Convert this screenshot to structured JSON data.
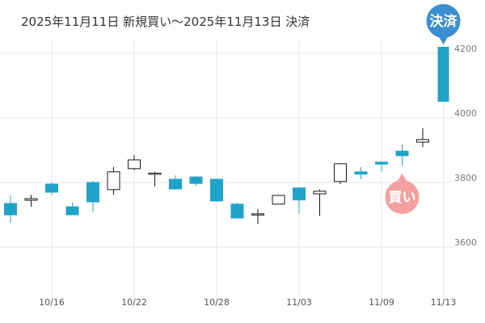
{
  "header": {
    "title": "2025年11月11日 新規買い〜2025年11月13日 決済"
  },
  "colors": {
    "up_fill": "#ffffff",
    "up_stroke": "#1a1a1a",
    "down_fill": "#1fa3c9",
    "grid": "#e6e6e6",
    "settle_bar": "#1fa3c9",
    "settle_badge": "#3b8fd1",
    "buy_badge": "#f4a0a0"
  },
  "markers": {
    "settle": {
      "label": "決済",
      "low": 4050,
      "high": 4220
    },
    "buy": {
      "label": "買い"
    }
  },
  "chart_data": {
    "type": "candlestick",
    "title": "2025年11月11日 新規買い〜2025年11月13日 決済",
    "xlabel": "",
    "ylabel": "",
    "ylim": [
      3420,
      4240
    ],
    "yticks": [
      3600,
      3800,
      4000,
      4200
    ],
    "xticks": [
      {
        "label": "10/16",
        "index": 2
      },
      {
        "label": "10/22",
        "index": 6
      },
      {
        "label": "10/28",
        "index": 10
      },
      {
        "label": "11/03",
        "index": 14
      },
      {
        "label": "11/09",
        "index": 18
      },
      {
        "label": "11/13",
        "index": 21
      }
    ],
    "grid": true,
    "candles": [
      {
        "open": 3735,
        "close": 3700,
        "high": 3760,
        "low": 3675
      },
      {
        "open": 3745,
        "close": 3750,
        "high": 3762,
        "low": 3725
      },
      {
        "open": 3795,
        "close": 3770,
        "high": 3800,
        "low": 3762
      },
      {
        "open": 3725,
        "close": 3700,
        "high": 3738,
        "low": 3700
      },
      {
        "open": 3800,
        "close": 3740,
        "high": 3805,
        "low": 3710
      },
      {
        "open": 3778,
        "close": 3833,
        "high": 3848,
        "low": 3762
      },
      {
        "open": 3843,
        "close": 3870,
        "high": 3885,
        "low": 3838
      },
      {
        "open": 3827,
        "close": 3829,
        "high": 3833,
        "low": 3788
      },
      {
        "open": 3810,
        "close": 3780,
        "high": 3822,
        "low": 3778
      },
      {
        "open": 3817,
        "close": 3797,
        "high": 3820,
        "low": 3790
      },
      {
        "open": 3810,
        "close": 3743,
        "high": 3812,
        "low": 3740
      },
      {
        "open": 3733,
        "close": 3690,
        "high": 3737,
        "low": 3690
      },
      {
        "open": 3700,
        "close": 3703,
        "high": 3718,
        "low": 3672
      },
      {
        "open": 3733,
        "close": 3760,
        "high": 3762,
        "low": 3733
      },
      {
        "open": 3783,
        "close": 3746,
        "high": 3785,
        "low": 3705
      },
      {
        "open": 3765,
        "close": 3773,
        "high": 3778,
        "low": 3697
      },
      {
        "open": 3803,
        "close": 3858,
        "high": 3860,
        "low": 3795
      },
      {
        "open": 3833,
        "close": 3826,
        "high": 3848,
        "low": 3810
      },
      {
        "open": 3863,
        "close": 3857,
        "high": 3866,
        "low": 3833
      },
      {
        "open": 3897,
        "close": 3883,
        "high": 3918,
        "low": 3852
      },
      {
        "open": 3925,
        "close": 3933,
        "high": 3968,
        "low": 3910
      }
    ]
  }
}
